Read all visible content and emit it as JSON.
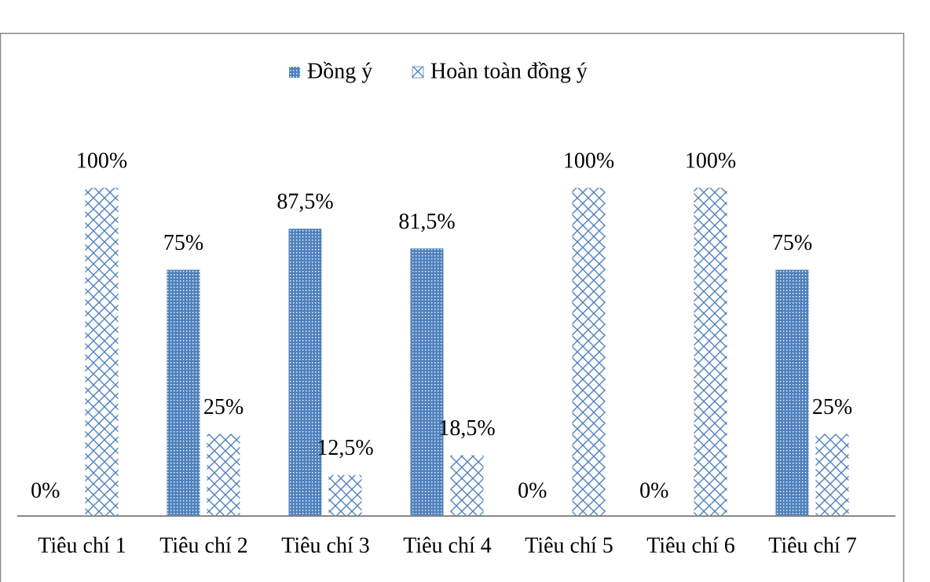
{
  "chart_data": {
    "type": "bar",
    "categories": [
      "Tiêu chí 1",
      "Tiêu chí 2",
      "Tiêu chí 3",
      "Tiêu chí 4",
      "Tiêu chí 5",
      "Tiêu chí 6",
      "Tiêu chí 7"
    ],
    "series": [
      {
        "name": "Đồng ý",
        "color": "#4f81bd",
        "pattern": "dots",
        "values": [
          0,
          75,
          87.5,
          81.5,
          0,
          0,
          75
        ],
        "value_labels": [
          "0%",
          "75%",
          "87,5%",
          "81,5%",
          "0%",
          "0%",
          "75%"
        ]
      },
      {
        "name": "Hoàn toàn đồng ý",
        "color": "#4f81bd",
        "pattern": "diamonds",
        "values": [
          100,
          25,
          12.5,
          18.5,
          100,
          100,
          25
        ],
        "value_labels": [
          "100%",
          "25%",
          "12,5%",
          "18,5%",
          "100%",
          "100%",
          "25%"
        ]
      }
    ],
    "legend": "top"
  }
}
